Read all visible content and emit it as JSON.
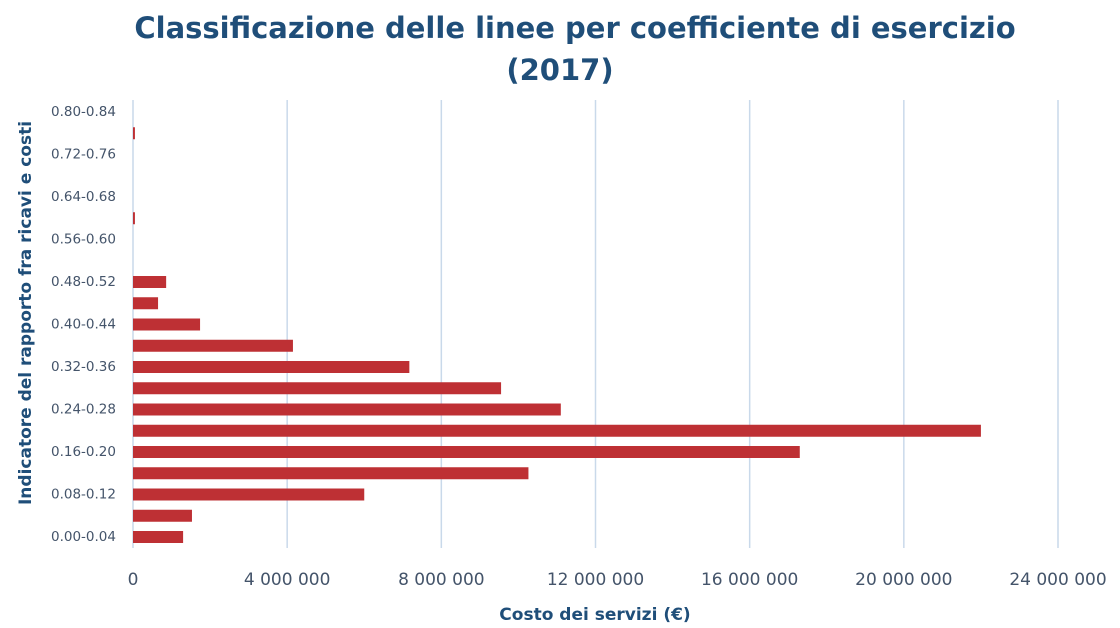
{
  "chart_data": {
    "type": "barh",
    "title": "Classificazione delle linee per coefficiente di esercizio",
    "subtitle": "(2017)",
    "xlabel": "Costo dei servizi (€)",
    "ylabel": "Indicatore del rapporto fra ricavi e costi",
    "categories": [
      "0.00-0.04",
      null,
      "0.08-0.12",
      null,
      "0.16-0.20",
      null,
      "0.24-0.28",
      null,
      "0.32-0.36",
      null,
      "0.40-0.44",
      null,
      "0.48-0.52",
      null,
      "0.56-0.60",
      null,
      "0.64-0.68",
      null,
      "0.72-0.76",
      null,
      "0.80-0.84"
    ],
    "values": [
      1300000,
      1530000,
      6000000,
      10260000,
      17300000,
      22000000,
      11100000,
      9550000,
      7170000,
      4150000,
      1740000,
      650000,
      860000,
      0,
      0,
      50000,
      0,
      0,
      0,
      50000,
      0
    ],
    "color": "#be3034",
    "xlim": [
      0,
      24000000
    ],
    "xticks": [
      0,
      {
        "value": 4000000,
        "label": "4 000 000"
      },
      {
        "value": 8000000,
        "label": "8 000 000"
      },
      {
        "value": 12000000,
        "label": "12 000 000"
      },
      {
        "value": 16000000,
        "label": "16 000 000"
      },
      {
        "value": 20000000,
        "label": "20 000 000"
      },
      {
        "value": 24000000,
        "label": "24 000 000"
      }
    ],
    "grid": true
  }
}
